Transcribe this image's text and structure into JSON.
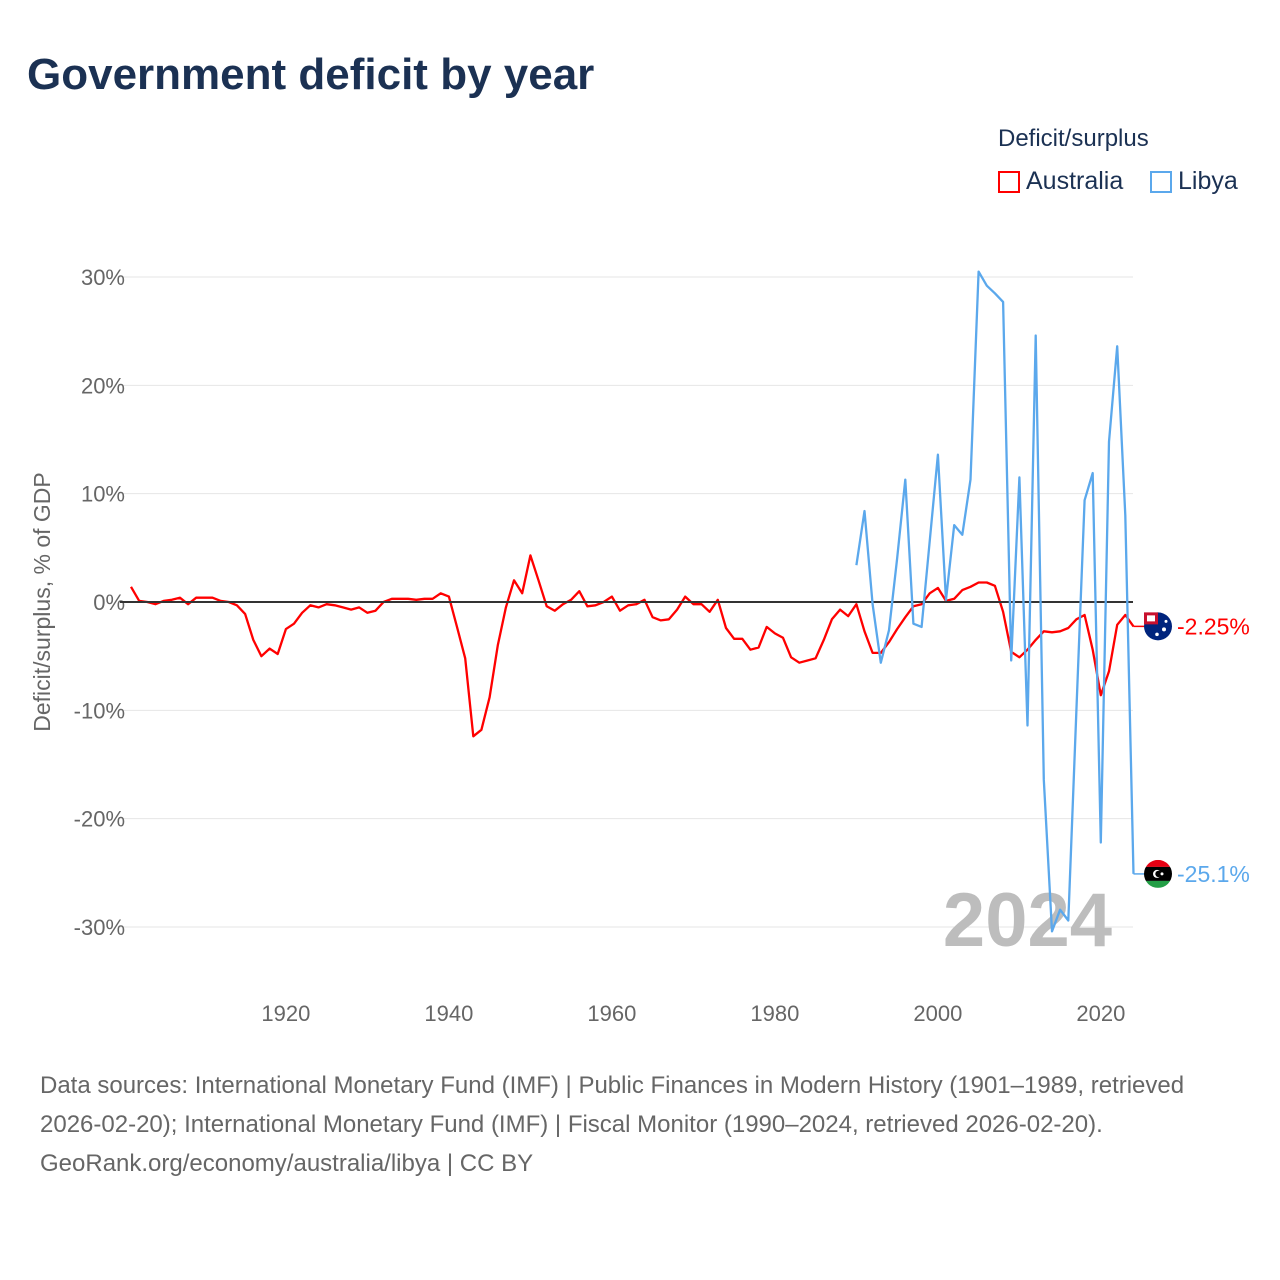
{
  "title": "Government deficit by year",
  "legend": {
    "title": "Deficit/surplus",
    "items": [
      {
        "label": "Australia",
        "color": "#ff0000"
      },
      {
        "label": "Libya",
        "color": "#5ba8ec"
      }
    ]
  },
  "year_watermark": "2024",
  "footer": {
    "sources": "Data sources: International Monetary Fund (IMF) | Public Finances in Modern History (1901–1989, retrieved 2026-02-20); International Monetary Fund (IMF) | Fiscal Monitor (1990–2024, retrieved 2026-02-20).",
    "credit": "GeoRank.org/economy/australia/libya | CC BY"
  },
  "chart_data": {
    "type": "line",
    "title": "Government deficit by year",
    "ylabel": "Deficit/surplus, % of GDP",
    "xlabel": "",
    "xlim": [
      1901,
      2024
    ],
    "ylim": [
      -30,
      30
    ],
    "x_ticks": [
      1920,
      1940,
      1960,
      1980,
      2000,
      2020
    ],
    "y_ticks": [
      {
        "v": 30,
        "label": "30%"
      },
      {
        "v": 20,
        "label": "20%"
      },
      {
        "v": 10,
        "label": "10%"
      },
      {
        "v": 0,
        "label": "0%"
      },
      {
        "v": -10,
        "label": "-10%"
      },
      {
        "v": -20,
        "label": "-20%"
      },
      {
        "v": -30,
        "label": "-30%"
      }
    ],
    "legend_position": "top-right",
    "series": [
      {
        "name": "Australia",
        "color": "#ff0000",
        "start_year": 1901,
        "end_label": "-2.25%",
        "values": [
          1.4,
          0.1,
          0,
          -0.2,
          0.1,
          0.2,
          0.4,
          -0.2,
          0.4,
          0.4,
          0.4,
          0.1,
          0,
          -0.3,
          -1.1,
          -3.5,
          -5.0,
          -4.3,
          -4.8,
          -2.5,
          -2.0,
          -1.0,
          -0.3,
          -0.5,
          -0.2,
          -0.3,
          -0.5,
          -0.7,
          -0.5,
          -1.0,
          -0.8,
          0,
          0.3,
          0.3,
          0.3,
          0.2,
          0.3,
          0.3,
          0.8,
          0.5,
          -2.3,
          -5.2,
          -12.4,
          -11.8,
          -8.8,
          -4.0,
          -0.5,
          2.0,
          0.8,
          4.3,
          2.0,
          -0.4,
          -0.8,
          -0.2,
          0.2,
          1.0,
          -0.4,
          -0.3,
          0,
          0.5,
          -0.8,
          -0.3,
          -0.2,
          0.2,
          -1.4,
          -1.7,
          -1.6,
          -0.7,
          0.5,
          -0.2,
          -0.2,
          -0.9,
          0.2,
          -2.4,
          -3.4,
          -3.4,
          -4.4,
          -4.2,
          -2.3,
          -2.9,
          -3.3,
          -5.1,
          -5.6,
          -5.4,
          -5.2,
          -3.5,
          -1.6,
          -0.7,
          -1.3,
          -0.2,
          -2.7,
          -4.7,
          -4.7,
          -3.7,
          -2.5,
          -1.4,
          -0.4,
          -0.2,
          0.8,
          1.3,
          0.1,
          0.3,
          1.1,
          1.4,
          1.8,
          1.8,
          1.5,
          -0.9,
          -4.6,
          -5.1,
          -4.4,
          -3.5,
          -2.7,
          -2.8,
          -2.7,
          -2.4,
          -1.6,
          -1.2,
          -4.4,
          -8.6,
          -6.4,
          -2.1,
          -1.2,
          -2.25
        ]
      },
      {
        "name": "Libya",
        "color": "#5ba8ec",
        "start_year": 1990,
        "end_label": "-25.1%",
        "values": [
          3.4,
          8.4,
          -0.2,
          -5.6,
          -2.6,
          4.0,
          11.3,
          -2.0,
          -2.3,
          5.6,
          13.6,
          0.2,
          7.1,
          6.2,
          11.3,
          30.5,
          29.2,
          28.5,
          27.7,
          -5.4,
          11.5,
          -11.4,
          24.6,
          -16.4,
          -30.4,
          -28.4,
          -29.4,
          -10.0,
          9.4,
          11.9,
          -22.2,
          14.8,
          23.6,
          8.0,
          -25.1
        ]
      }
    ]
  }
}
